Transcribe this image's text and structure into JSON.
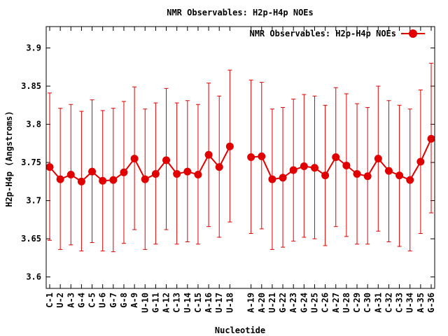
{
  "chart_data": {
    "type": "line",
    "title": "NMR Observables: H2p-H4p NOEs",
    "xlabel": "Nucleotide",
    "ylabel": "H2p-H4p (Angstroms)",
    "ylim": [
      3.585,
      3.928
    ],
    "yticks": [
      "3.6",
      "3.65",
      "3.7",
      "3.75",
      "3.8",
      "3.85",
      "3.9"
    ],
    "grid": false,
    "legend_position": "top-right",
    "series": [
      {
        "name": "NMR Observables: H2p-H4p NOEs",
        "color": "#e00000",
        "segments": [
          {
            "categories": [
              "C-1",
              "U-2",
              "A-3",
              "G-4",
              "C-5",
              "U-6",
              "G-7",
              "G-8",
              "A-9",
              "U-10",
              "G-11",
              "A-12",
              "C-13",
              "U-14",
              "C-15",
              "A-16",
              "U-17",
              "U-18"
            ],
            "values": [
              3.744,
              3.728,
              3.734,
              3.725,
              3.738,
              3.726,
              3.727,
              3.737,
              3.755,
              3.728,
              3.735,
              3.753,
              3.735,
              3.738,
              3.734,
              3.76,
              3.744,
              3.771
            ],
            "lower": [
              3.648,
              3.636,
              3.642,
              3.634,
              3.645,
              3.634,
              3.633,
              3.644,
              3.662,
              3.636,
              3.643,
              3.662,
              3.643,
              3.646,
              3.643,
              3.666,
              3.652,
              3.672
            ],
            "upper": [
              3.841,
              3.821,
              3.826,
              3.817,
              3.832,
              3.818,
              3.821,
              3.83,
              3.849,
              3.82,
              3.828,
              3.847,
              3.828,
              3.831,
              3.826,
              3.854,
              3.837,
              3.871
            ]
          },
          {
            "categories": [
              "A-19",
              "A-20",
              "U-21",
              "G-22",
              "A-23",
              "G-24",
              "U-25",
              "C-26",
              "A-27",
              "U-28",
              "C-29",
              "C-30",
              "A-31",
              "C-32",
              "C-33",
              "U-34",
              "A-35",
              "G-36"
            ],
            "values": [
              3.757,
              3.758,
              3.728,
              3.73,
              3.74,
              3.745,
              3.743,
              3.733,
              3.757,
              3.746,
              3.735,
              3.732,
              3.755,
              3.739,
              3.733,
              3.727,
              3.751,
              3.781
            ],
            "lower": [
              3.657,
              3.663,
              3.636,
              3.639,
              3.647,
              3.652,
              3.65,
              3.641,
              3.666,
              3.653,
              3.643,
              3.643,
              3.66,
              3.646,
              3.64,
              3.634,
              3.657,
              3.684
            ],
            "upper": [
              3.858,
              3.855,
              3.82,
              3.822,
              3.833,
              3.839,
              3.837,
              3.825,
              3.848,
              3.84,
              3.827,
              3.822,
              3.85,
              3.831,
              3.825,
              3.82,
              3.845,
              3.88
            ]
          }
        ]
      }
    ]
  }
}
